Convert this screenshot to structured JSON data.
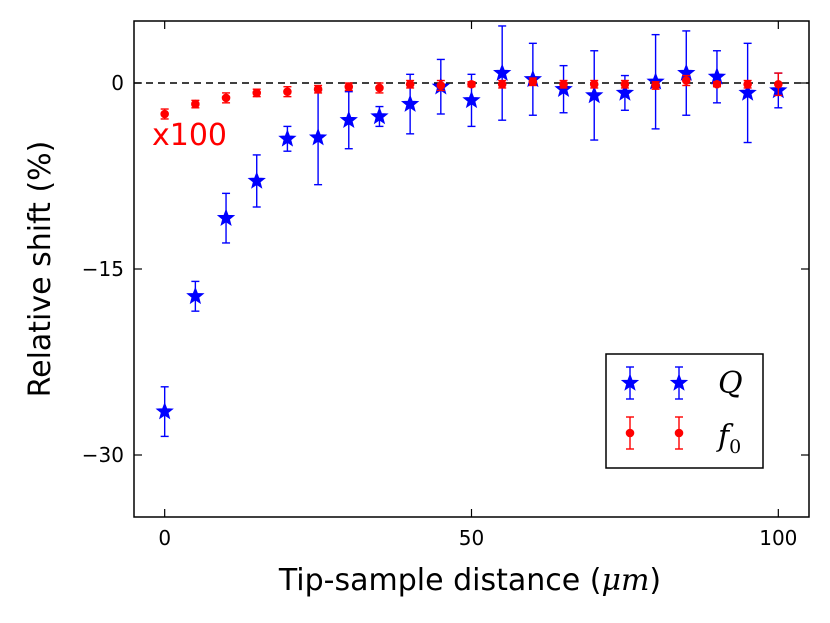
{
  "chart_data": {
    "type": "scatter",
    "xlabel": "Tip-sample distance (",
    "xlabel_unit": "μm",
    "xlabel_close": ")",
    "ylabel": "Relative shift (%)",
    "xlim": [
      -5,
      105
    ],
    "ylim": [
      -35,
      5
    ],
    "xticks": [
      0,
      50,
      100
    ],
    "yticks": [
      0,
      -15,
      -30
    ],
    "ytick_labels": [
      "0",
      "−15",
      "−30"
    ],
    "reference_line": 0,
    "annotation": "x100",
    "series": [
      {
        "name": "Q",
        "color": "#0000ff",
        "marker": "star",
        "x": [
          0,
          5,
          10,
          15,
          20,
          25,
          30,
          35,
          40,
          45,
          50,
          55,
          60,
          65,
          70,
          75,
          80,
          85,
          90,
          95,
          100
        ],
        "y": [
          -26.5,
          -17.2,
          -10.9,
          -7.9,
          -4.5,
          -4.4,
          -3.0,
          -2.7,
          -1.7,
          -0.3,
          -1.4,
          0.8,
          0.3,
          -0.5,
          -1.0,
          -0.8,
          0.1,
          0.8,
          0.5,
          -0.8,
          -0.6
        ],
        "yerr": [
          2.0,
          1.2,
          2.0,
          2.1,
          1.0,
          3.8,
          2.3,
          0.8,
          2.4,
          2.2,
          2.1,
          3.8,
          2.9,
          1.9,
          3.6,
          1.4,
          3.8,
          3.4,
          2.1,
          4.0,
          1.4
        ]
      },
      {
        "name": "f",
        "subscript": "0",
        "color": "#ff0000",
        "marker": "circle",
        "x": [
          0,
          5,
          10,
          15,
          20,
          25,
          30,
          35,
          40,
          45,
          50,
          55,
          60,
          65,
          70,
          75,
          80,
          85,
          90,
          95,
          100
        ],
        "y": [
          -2.5,
          -1.7,
          -1.2,
          -0.8,
          -0.7,
          -0.5,
          -0.3,
          -0.4,
          -0.1,
          -0.2,
          -0.1,
          -0.1,
          0.1,
          -0.1,
          -0.1,
          -0.1,
          -0.2,
          0.2,
          -0.1,
          -0.1,
          -0.1
        ],
        "yerr": [
          0.4,
          0.3,
          0.4,
          0.3,
          0.4,
          0.3,
          0.3,
          0.4,
          0.3,
          0.4,
          0.2,
          0.3,
          0.3,
          0.3,
          0.3,
          0.3,
          0.3,
          0.4,
          0.2,
          0.3,
          0.9
        ]
      }
    ],
    "legend": {
      "placement": "lower-right"
    }
  }
}
